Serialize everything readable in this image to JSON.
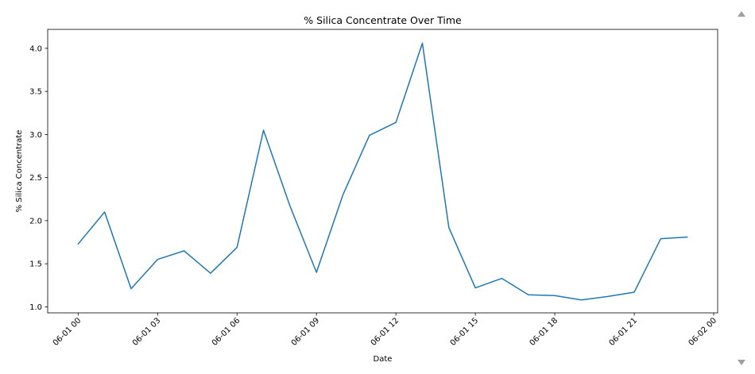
{
  "chart_data": {
    "type": "line",
    "title": "% Silica Concentrate Over Time",
    "xlabel": "Date",
    "ylabel": "% Silica Concentrate",
    "x": [
      "2017-06-01 00:00",
      "2017-06-01 01:00",
      "2017-06-01 02:00",
      "2017-06-01 03:00",
      "2017-06-01 04:00",
      "2017-06-01 05:00",
      "2017-06-01 06:00",
      "2017-06-01 07:00",
      "2017-06-01 08:00",
      "2017-06-01 09:00",
      "2017-06-01 10:00",
      "2017-06-01 11:00",
      "2017-06-01 12:00",
      "2017-06-01 13:00",
      "2017-06-01 14:00",
      "2017-06-01 15:00",
      "2017-06-01 16:00",
      "2017-06-01 17:00",
      "2017-06-01 18:00",
      "2017-06-01 19:00",
      "2017-06-01 20:00",
      "2017-06-01 21:00",
      "2017-06-01 22:00",
      "2017-06-01 23:00"
    ],
    "series": [
      {
        "values": [
          1.73,
          2.1,
          1.21,
          1.55,
          1.65,
          1.39,
          1.69,
          3.05,
          2.17,
          1.4,
          2.3,
          2.99,
          3.14,
          4.06,
          1.92,
          1.22,
          1.33,
          1.14,
          1.13,
          1.08,
          1.12,
          1.17,
          1.79,
          1.81
        ],
        "color": "#1f77b4"
      }
    ],
    "xticks": [
      "06-01 00",
      "06-01 03",
      "06-01 06",
      "06-01 09",
      "06-01 12",
      "06-01 15",
      "06-01 18",
      "06-01 21",
      "06-02 00"
    ],
    "yticks": [
      "1.0",
      "1.5",
      "2.0",
      "2.5",
      "3.0",
      "3.5",
      "4.0"
    ],
    "ylim": [
      0.93,
      4.22
    ],
    "grid": false,
    "line_color": "#1f77b4"
  },
  "scrollbar": {
    "up_icon": "chevron-up-icon",
    "down_icon": "chevron-down-icon"
  }
}
